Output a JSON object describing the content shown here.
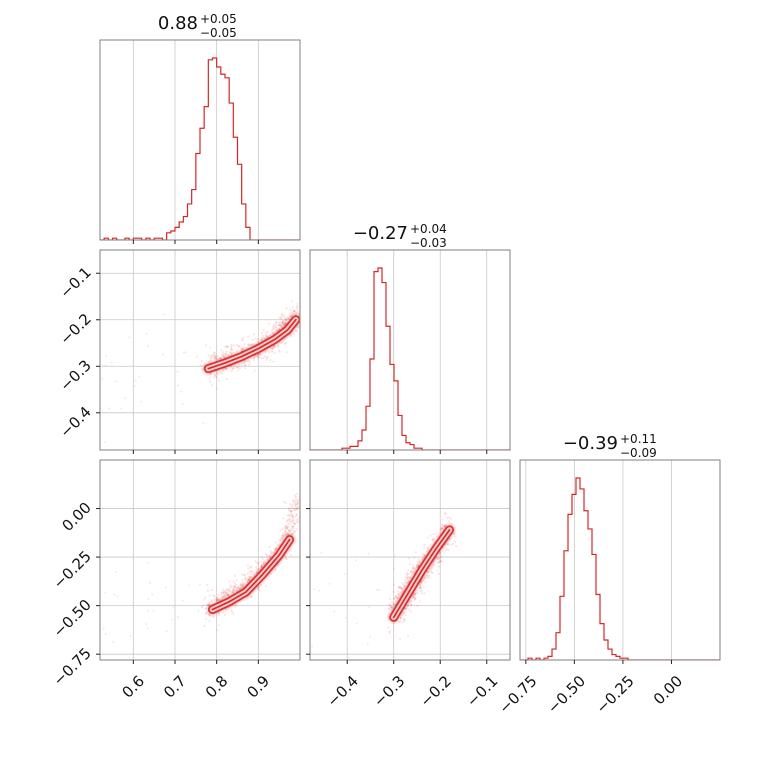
{
  "chart_data": {
    "type": "corner",
    "color": "#d62728",
    "parameters": [
      {
        "range": [
          0.52,
          1.0
        ],
        "ticks": [
          0.6,
          0.7,
          0.8,
          0.9
        ],
        "tick_labels": [
          "0.6",
          "0.7",
          "0.8",
          "0.9"
        ],
        "title_main": "0.88",
        "title_plus": "+0.05",
        "title_minus": "−0.05"
      },
      {
        "range": [
          -0.48,
          -0.05
        ],
        "ticks": [
          -0.4,
          -0.3,
          -0.2,
          -0.1
        ],
        "tick_labels": [
          "−0.4",
          "−0.3",
          "−0.2",
          "−0.1"
        ],
        "title_main": "−0.27",
        "title_plus": "+0.04",
        "title_minus": "−0.03"
      },
      {
        "range": [
          -0.78,
          0.25
        ],
        "ticks": [
          -0.75,
          -0.5,
          -0.25,
          0.0
        ],
        "tick_labels": [
          "−0.75",
          "−0.50",
          "−0.25",
          "0.00"
        ],
        "title_main": "−0.39",
        "title_plus": "+0.11",
        "title_minus": "−0.09"
      }
    ],
    "histograms": [
      {
        "param": 0,
        "bin_start": 0.52,
        "bin_width": 0.01,
        "counts": [
          0,
          1,
          0,
          1,
          0,
          0,
          1,
          0,
          1,
          1,
          0,
          1,
          0,
          1,
          1,
          0,
          4,
          5,
          7,
          10,
          13,
          20,
          28,
          48,
          62,
          74,
          100,
          101,
          96,
          92,
          90,
          76,
          57,
          42,
          20,
          7,
          0,
          0,
          0,
          0,
          0,
          0,
          0,
          0,
          0,
          0,
          0,
          0
        ]
      },
      {
        "param": 1,
        "bin_start": -0.48,
        "bin_width": 0.0086,
        "counts": [
          0,
          0,
          0,
          0,
          0,
          0,
          0,
          0,
          1,
          1,
          2,
          2,
          5,
          11,
          24,
          50,
          98,
          100,
          92,
          68,
          47,
          38,
          19,
          8,
          4,
          3,
          1,
          1,
          0,
          0,
          0,
          0,
          0,
          0,
          0,
          0,
          0,
          0,
          0,
          0,
          0,
          0,
          0,
          0,
          0,
          0,
          0,
          0,
          0,
          0
        ]
      },
      {
        "param": 2,
        "bin_start": -0.78,
        "bin_width": 0.0206,
        "counts": [
          0,
          0,
          1,
          0,
          1,
          0,
          1,
          2,
          6,
          15,
          35,
          60,
          80,
          91,
          100,
          94,
          82,
          72,
          58,
          36,
          20,
          11,
          6,
          3,
          2,
          1,
          1,
          0,
          0,
          0,
          0,
          0,
          0,
          0,
          0,
          0,
          0,
          0,
          0,
          0,
          0,
          0,
          0,
          0,
          0,
          0,
          0,
          0,
          0,
          0
        ]
      }
    ],
    "scatter_panels": [
      {
        "x_param": 0,
        "y_param": 1,
        "band": [
          [
            0.78,
            -0.305
          ],
          [
            0.82,
            -0.295
          ],
          [
            0.86,
            -0.278
          ],
          [
            0.9,
            -0.262
          ],
          [
            0.94,
            -0.24
          ],
          [
            0.97,
            -0.215
          ],
          [
            0.99,
            -0.19
          ]
        ],
        "spread": 0.014,
        "contours": [
          [
            [
              0.78,
              -0.305
            ],
            [
              0.82,
              -0.293
            ],
            [
              0.86,
              -0.279
            ],
            [
              0.9,
              -0.262
            ],
            [
              0.94,
              -0.242
            ],
            [
              0.97,
              -0.222
            ],
            [
              0.99,
              -0.2
            ]
          ]
        ]
      },
      {
        "x_param": 0,
        "y_param": 2,
        "band": [
          [
            0.78,
            -0.52
          ],
          [
            0.82,
            -0.47
          ],
          [
            0.86,
            -0.42
          ],
          [
            0.9,
            -0.34
          ],
          [
            0.94,
            -0.25
          ],
          [
            0.97,
            -0.14
          ],
          [
            0.995,
            0.05
          ]
        ],
        "spread": 0.03,
        "contours": [
          [
            [
              0.79,
              -0.52
            ],
            [
              0.83,
              -0.48
            ],
            [
              0.87,
              -0.43
            ],
            [
              0.91,
              -0.34
            ],
            [
              0.95,
              -0.24
            ],
            [
              0.975,
              -0.16
            ]
          ]
        ]
      },
      {
        "x_param": 1,
        "y_param": 2,
        "band": [
          [
            -0.3,
            -0.55
          ],
          [
            -0.28,
            -0.47
          ],
          [
            -0.26,
            -0.4
          ],
          [
            -0.24,
            -0.32
          ],
          [
            -0.21,
            -0.22
          ],
          [
            -0.18,
            -0.11
          ]
        ],
        "spread": 0.04,
        "contours": [
          [
            [
              -0.3,
              -0.56
            ],
            [
              -0.28,
              -0.48
            ],
            [
              -0.26,
              -0.4
            ],
            [
              -0.24,
              -0.32
            ],
            [
              -0.21,
              -0.21
            ],
            [
              -0.18,
              -0.11
            ]
          ]
        ]
      }
    ]
  }
}
